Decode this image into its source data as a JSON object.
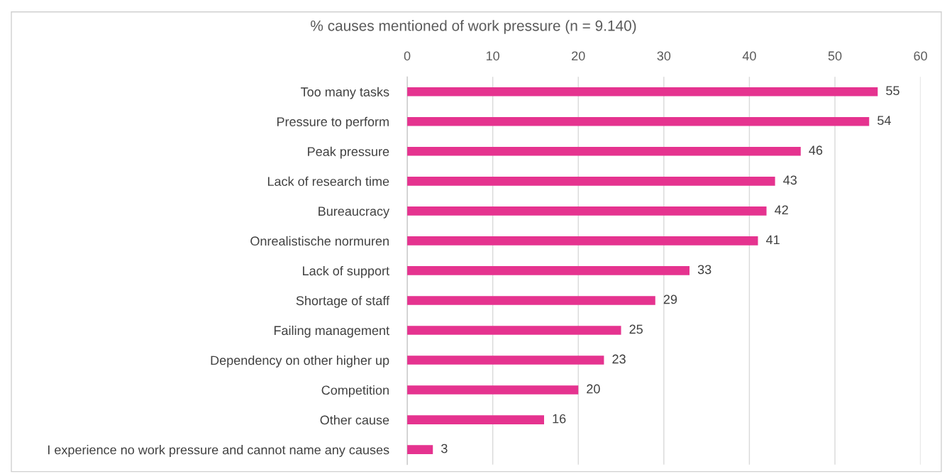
{
  "chart_data": {
    "type": "bar",
    "orientation": "horizontal",
    "title": "% causes mentioned of work pressure (n = 9.140)",
    "categories": [
      "Too many tasks",
      "Pressure to perform",
      "Peak pressure",
      "Lack of research time",
      "Bureaucracy",
      "Onrealistische normuren",
      "Lack of support",
      "Shortage of staff",
      "Failing management",
      "Dependency on other higher up",
      "Competition",
      "Other cause",
      "I experience no work pressure and cannot name any causes"
    ],
    "values": [
      55,
      54,
      46,
      43,
      42,
      41,
      33,
      29,
      25,
      23,
      20,
      16,
      3
    ],
    "color": "#e5338f",
    "xlim": [
      0,
      60
    ],
    "xticks": [
      0,
      10,
      20,
      30,
      40,
      50,
      60
    ],
    "grid": "x",
    "data_labels": true
  }
}
